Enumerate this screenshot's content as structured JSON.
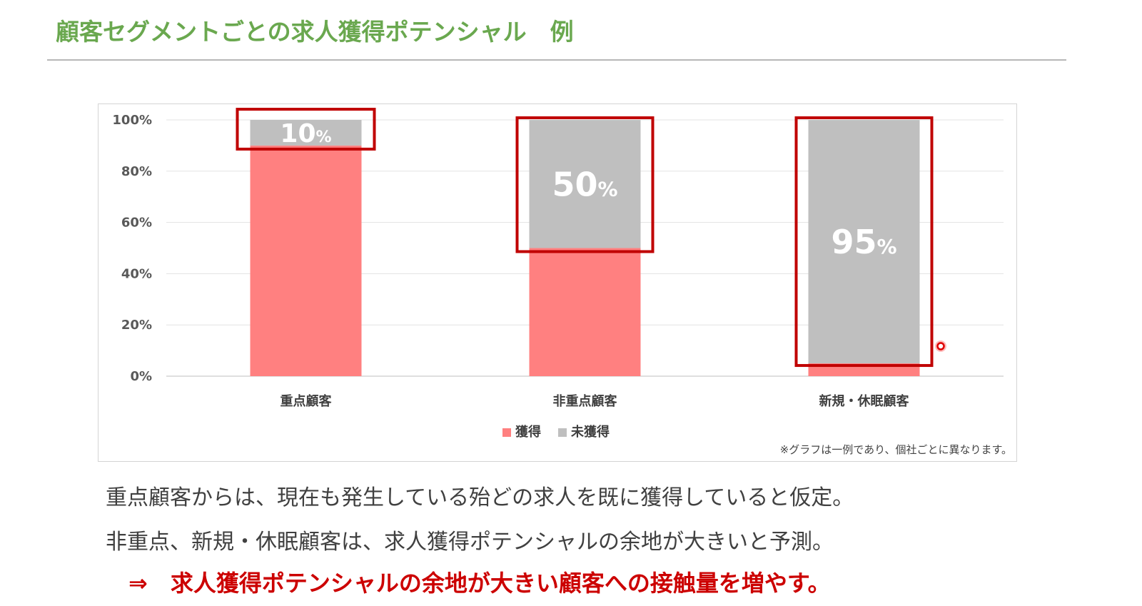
{
  "slide": {
    "title": "顧客セグメントごとの求人獲得ポテンシャル　例",
    "note": "※グラフは一例であり、個社ごとに異なります。",
    "body_lines": [
      "重点顧客からは、現在も発生している殆どの求人を既に獲得していると仮定。",
      "非重点、新規・休眠顧客は、求人獲得ポテンシャルの余地が大きいと予測。"
    ],
    "conclusion": "⇒　求人獲得ポテンシャルの余地が大きい顧客への接触量を増やす。"
  },
  "colors": {
    "acquired": "#ff8080",
    "not_acquired": "#bfbfbf",
    "highlight_box": "#c00000",
    "title": "#6aa84f"
  },
  "chart_data": {
    "type": "bar",
    "stacked": true,
    "categories": [
      "重点顧客",
      "非重点顧客",
      "新規・休眠顧客"
    ],
    "series": [
      {
        "name": "獲得",
        "values": [
          90,
          50,
          5
        ]
      },
      {
        "name": "未獲得",
        "values": [
          10,
          50,
          95
        ]
      }
    ],
    "data_labels": [
      "10%",
      "50%",
      "95%"
    ],
    "y_ticks": [
      "0%",
      "20%",
      "40%",
      "60%",
      "80%",
      "100%"
    ],
    "ylim": [
      0,
      100
    ],
    "grid": true,
    "legend_position": "bottom"
  }
}
